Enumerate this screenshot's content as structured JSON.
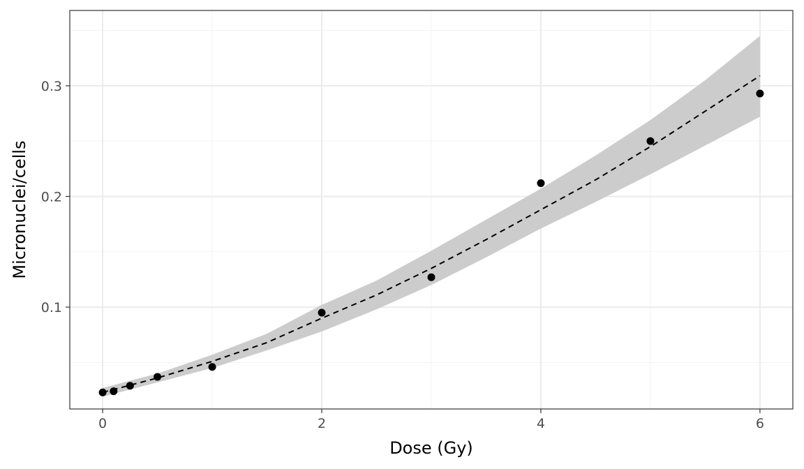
{
  "chart_data": {
    "type": "scatter",
    "title": "",
    "xlabel": "Dose (Gy)",
    "ylabel": "Micronuclei/cells",
    "xlim": [
      -0.3,
      6.3
    ],
    "ylim": [
      0.008,
      0.368
    ],
    "x_ticks": [
      0,
      2,
      4,
      6
    ],
    "x_tick_labels": [
      "0",
      "2",
      "4",
      "6"
    ],
    "x_minor_ticks": [
      1,
      3,
      5
    ],
    "y_ticks": [
      0.1,
      0.2,
      0.3
    ],
    "y_tick_labels": [
      "0.1",
      "0.2",
      "0.3"
    ],
    "y_minor_ticks": [
      0.05,
      0.15,
      0.25,
      0.35
    ],
    "grid": true,
    "points": {
      "x": [
        0,
        0.1,
        0.25,
        0.5,
        1,
        2,
        3,
        4,
        5,
        6
      ],
      "y": [
        0.023,
        0.024,
        0.029,
        0.037,
        0.046,
        0.095,
        0.127,
        0.212,
        0.25,
        0.293
      ]
    },
    "fit_curve": {
      "style": "dashed",
      "x": [
        0,
        0.5,
        1,
        1.5,
        2,
        2.5,
        3,
        3.5,
        4,
        4.5,
        5,
        5.5,
        6
      ],
      "y": [
        0.023,
        0.036,
        0.051,
        0.068,
        0.09,
        0.111,
        0.135,
        0.161,
        0.188,
        0.215,
        0.245,
        0.277,
        0.309
      ],
      "ci_lower": [
        0.019,
        0.032,
        0.045,
        0.061,
        0.078,
        0.098,
        0.12,
        0.145,
        0.171,
        0.195,
        0.22,
        0.246,
        0.272
      ],
      "ci_upper": [
        0.027,
        0.04,
        0.057,
        0.076,
        0.102,
        0.124,
        0.151,
        0.179,
        0.207,
        0.237,
        0.269,
        0.305,
        0.345
      ]
    },
    "colors": {
      "points": "#000000",
      "ci_band": "#cccccc",
      "fit_line": "#000000",
      "grid_major": "#ebebeb",
      "grid_minor": "#f3f3f3",
      "panel_border": "#333333"
    }
  }
}
